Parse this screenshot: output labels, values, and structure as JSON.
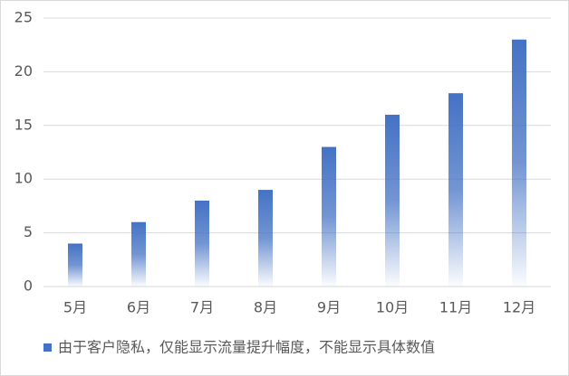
{
  "chart_data": {
    "type": "bar",
    "categories": [
      "5月",
      "6月",
      "7月",
      "8月",
      "9月",
      "10月",
      "11月",
      "12月"
    ],
    "series": [
      {
        "name": "由于客户隐私，仅能显示流量提升幅度，不能显示具体数值",
        "color": "#4472c4",
        "values": [
          4,
          6,
          8,
          9,
          13,
          16,
          18,
          23
        ]
      }
    ],
    "ylim": [
      0,
      25
    ],
    "yticks": [
      0,
      5,
      10,
      15,
      20,
      25
    ],
    "grid": true,
    "legend": "bottom"
  }
}
